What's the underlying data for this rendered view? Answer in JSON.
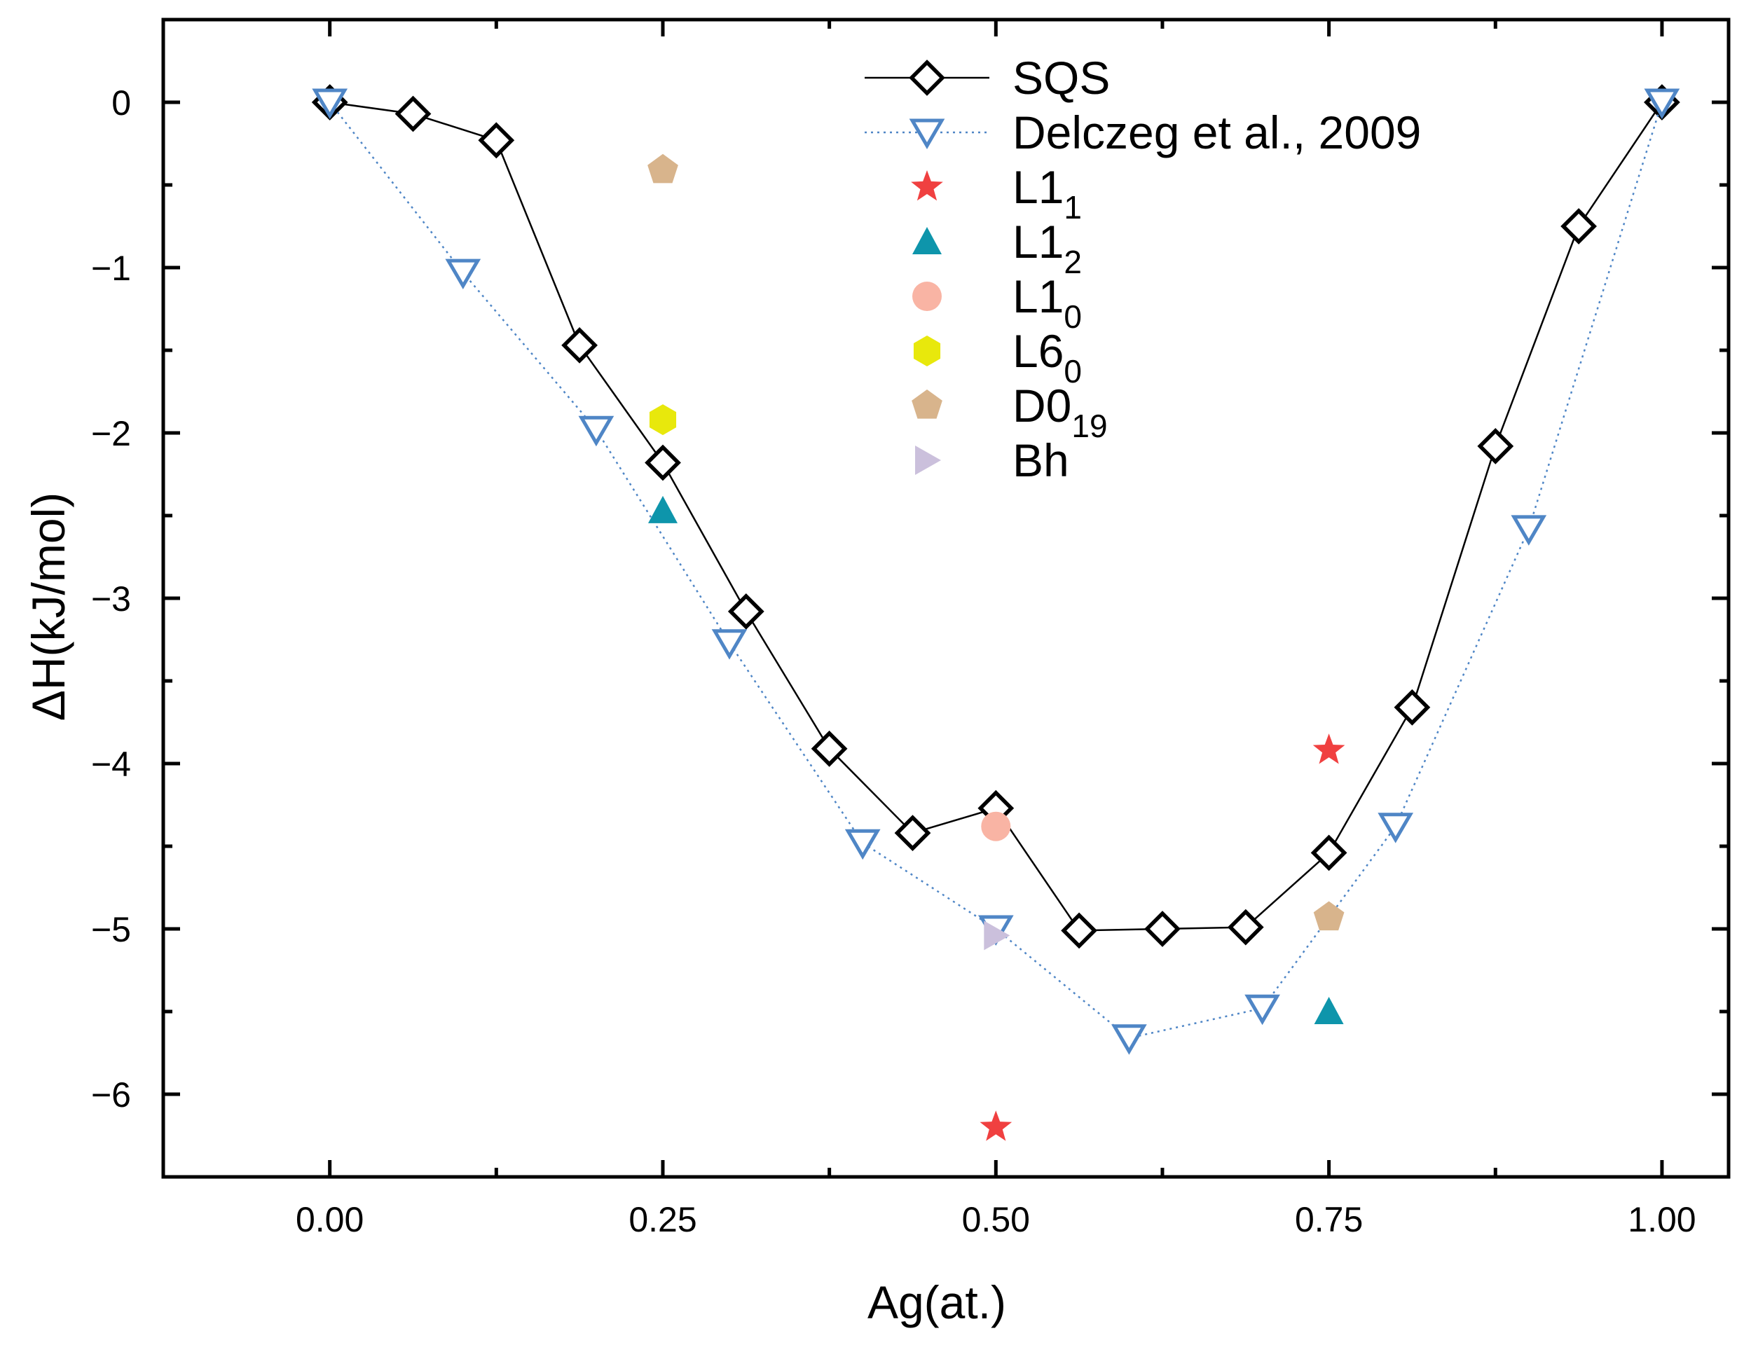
{
  "chart_data": {
    "type": "scatter",
    "title": "",
    "xlabel": "Ag(at.)",
    "ylabel": "ΔH(kJ/mol)",
    "xlim": [
      -0.125,
      1.05
    ],
    "ylim": [
      -6.5,
      0.5
    ],
    "xticks": [
      0.0,
      0.25,
      0.5,
      0.75,
      1.0
    ],
    "xtick_labels": [
      "0.00",
      "0.25",
      "0.50",
      "0.75",
      "1.00"
    ],
    "yticks": [
      0,
      -1,
      -2,
      -3,
      -4,
      -5,
      -6
    ],
    "ytick_labels": [
      "0",
      "−1",
      "−2",
      "−3",
      "−4",
      "−5",
      "−6"
    ],
    "grid": false,
    "legend_position": "top-center",
    "series": [
      {
        "name": "SQS",
        "legend_main": "SQS",
        "legend_sub": "",
        "marker": "diamond",
        "line": "solid",
        "color": "#000000",
        "x": [
          0.0,
          0.0625,
          0.125,
          0.1875,
          0.25,
          0.3125,
          0.375,
          0.4375,
          0.5,
          0.5625,
          0.625,
          0.6875,
          0.75,
          0.8125,
          0.875,
          0.9375,
          1.0
        ],
        "y": [
          0.0,
          -0.07,
          -0.23,
          -1.47,
          -2.18,
          -3.08,
          -3.91,
          -4.42,
          -4.27,
          -5.01,
          -5.0,
          -4.99,
          -4.54,
          -3.66,
          -2.08,
          -0.75,
          0.0
        ]
      },
      {
        "name": "Delczeg et al., 2009",
        "legend_main": "Delczeg et al., 2009",
        "legend_sub": "",
        "marker": "triangle-down",
        "line": "dotted",
        "color": "#4f86c6",
        "x": [
          0.0,
          0.1,
          0.2,
          0.3,
          0.4,
          0.5,
          0.6,
          0.7,
          0.8,
          0.9,
          1.0
        ],
        "y": [
          0.0,
          -1.03,
          -1.98,
          -3.27,
          -4.48,
          -5.0,
          -5.66,
          -5.48,
          -4.38,
          -2.58,
          0.0
        ]
      },
      {
        "name": "L1_1",
        "legend_main": "L1",
        "legend_sub": "1",
        "marker": "star",
        "line": "none",
        "color": "#f04040",
        "x": [
          0.5,
          0.75
        ],
        "y": [
          -6.2,
          -3.92
        ]
      },
      {
        "name": "L1_2",
        "legend_main": "L1",
        "legend_sub": "2",
        "marker": "triangle-up",
        "line": "none",
        "color": "#0e95ab",
        "x": [
          0.25,
          0.75
        ],
        "y": [
          -2.47,
          -5.5
        ]
      },
      {
        "name": "L1_0",
        "legend_main": "L1",
        "legend_sub": "0",
        "marker": "circle",
        "line": "none",
        "color": "#f9b4a4",
        "x": [
          0.5
        ],
        "y": [
          -4.38
        ]
      },
      {
        "name": "L6_0",
        "legend_main": "L6",
        "legend_sub": "0",
        "marker": "hexagon",
        "line": "none",
        "color": "#e8e80c",
        "x": [
          0.25
        ],
        "y": [
          -1.92
        ]
      },
      {
        "name": "D0_19",
        "legend_main": "D0",
        "legend_sub": "19",
        "marker": "pentagon",
        "line": "none",
        "color": "#d8b48c",
        "x": [
          0.25,
          0.75
        ],
        "y": [
          -0.41,
          -4.93
        ]
      },
      {
        "name": "Bh",
        "legend_main": "Bh",
        "legend_sub": "",
        "marker": "triangle-right",
        "line": "none",
        "color": "#cbc0dc",
        "x": [
          0.5
        ],
        "y": [
          -5.04
        ]
      }
    ]
  }
}
